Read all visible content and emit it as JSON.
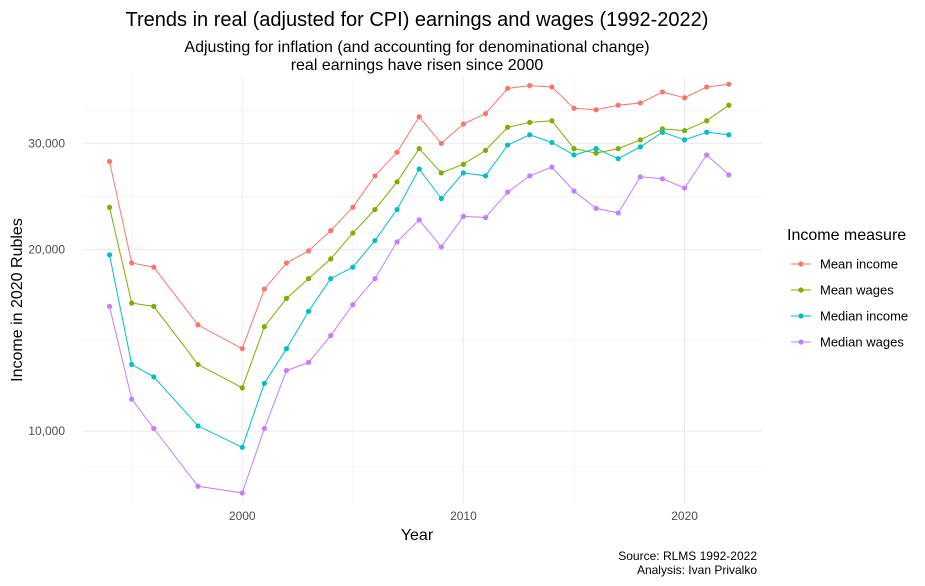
{
  "chart_data": {
    "type": "line",
    "title": "Trends in real (adjusted for CPI) earnings and wages (1992-2022)",
    "subtitle_lines": [
      "Adjusting for inflation (and accounting for denominational change)",
      "real earnings have risen since 2000"
    ],
    "xlabel": "Year",
    "ylabel": "Income in 2020 Rubles",
    "y_scale": "log",
    "xlim": [
      1992.8,
      2023.5
    ],
    "ylim": [
      7600,
      38500
    ],
    "x_ticks": [
      2000,
      2010,
      2020
    ],
    "x_tick_labels": [
      "2000",
      "2010",
      "2020"
    ],
    "y_ticks": [
      10000,
      20000,
      30000
    ],
    "y_tick_labels": [
      "10,000",
      "20,000",
      "30,000"
    ],
    "legend_title": "Income measure",
    "legend_position": "right",
    "caption_lines": [
      "Source: RLMS 1992-2022",
      "Analysis: Ivan Privalko"
    ],
    "x": [
      1994,
      1995,
      1996,
      1998,
      2000,
      2001,
      2002,
      2003,
      2004,
      2005,
      2006,
      2007,
      2008,
      2009,
      2010,
      2011,
      2012,
      2013,
      2014,
      2015,
      2016,
      2017,
      2018,
      2019,
      2020,
      2021,
      2022
    ],
    "series": [
      {
        "name": "Mean income",
        "color": "#F8766D",
        "values": [
          28000,
          19000,
          18700,
          15000,
          13700,
          17200,
          19000,
          19900,
          21500,
          23500,
          26500,
          29000,
          33200,
          30000,
          32300,
          33600,
          37000,
          37400,
          37200,
          34300,
          34100,
          34700,
          35000,
          36500,
          35700,
          37200,
          37600
        ]
      },
      {
        "name": "Mean wages",
        "color": "#7CAE00",
        "values": [
          23500,
          16300,
          16100,
          12900,
          11800,
          14900,
          16600,
          17900,
          19300,
          21300,
          23300,
          25900,
          29400,
          26800,
          27700,
          29200,
          31900,
          32500,
          32700,
          29400,
          28900,
          29400,
          30400,
          31700,
          31500,
          32700,
          34700
        ]
      },
      {
        "name": "Median income",
        "color": "#00BFC4",
        "values": [
          19600,
          12900,
          12300,
          10200,
          9400,
          12000,
          13700,
          15800,
          17900,
          18700,
          20700,
          23300,
          27200,
          24300,
          26800,
          26500,
          29800,
          31000,
          30100,
          28700,
          29400,
          28300,
          29600,
          31300,
          30400,
          31300,
          31000
        ]
      },
      {
        "name": "Median wages",
        "color": "#C77CFF",
        "values": [
          16100,
          11300,
          10100,
          8100,
          7900,
          10100,
          12600,
          13000,
          14400,
          16200,
          17900,
          20600,
          22400,
          20200,
          22700,
          22600,
          24900,
          26500,
          27400,
          25000,
          23400,
          23000,
          26400,
          26200,
          25300,
          28700,
          26600
        ]
      }
    ]
  }
}
